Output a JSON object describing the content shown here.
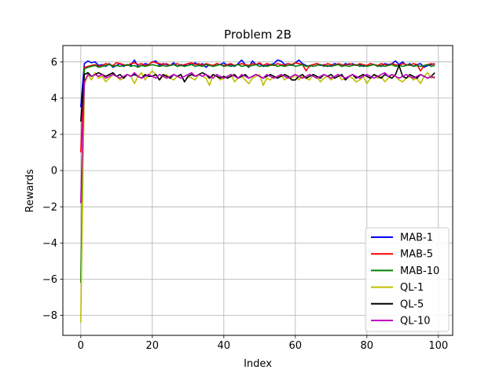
{
  "chart_data": {
    "type": "line",
    "title": "Problem 2B",
    "xlabel": "Index",
    "ylabel": "Rewards",
    "xlim": [
      -5,
      104
    ],
    "ylim": [
      -9.1,
      6.9
    ],
    "xticks": [
      0,
      20,
      40,
      60,
      80,
      100
    ],
    "yticks": [
      -8,
      -6,
      -4,
      -2,
      0,
      2,
      4,
      6
    ],
    "grid": true,
    "legend_position": "lower right",
    "series": [
      {
        "name": "MAB-1",
        "color": "#0000ff",
        "values": [
          3.5,
          5.9,
          6.05,
          5.95,
          6.0,
          5.8,
          5.85,
          5.75,
          5.9,
          5.7,
          5.8,
          5.9,
          5.75,
          5.85,
          5.8,
          6.1,
          5.75,
          5.8,
          5.9,
          5.85,
          6.0,
          6.05,
          5.8,
          5.9,
          5.85,
          5.8,
          5.95,
          5.75,
          5.85,
          5.8,
          5.9,
          5.85,
          5.95,
          5.8,
          5.9,
          5.7,
          5.85,
          5.75,
          5.9,
          5.85,
          5.95,
          5.8,
          5.85,
          5.75,
          5.9,
          6.1,
          5.85,
          5.7,
          6.05,
          5.85,
          5.9,
          5.75,
          5.8,
          5.85,
          5.9,
          6.1,
          6.05,
          5.85,
          5.9,
          5.8,
          5.95,
          6.1,
          5.9,
          5.8,
          5.75,
          5.85,
          5.9,
          5.8,
          5.85,
          5.75,
          5.8,
          5.9,
          5.85,
          5.75,
          5.9,
          5.85,
          5.9,
          5.8,
          5.85,
          5.75,
          5.8,
          5.9,
          5.85,
          5.8,
          5.75,
          5.9,
          5.85,
          5.9,
          6.05,
          5.85,
          6.0,
          5.8,
          5.9,
          5.75,
          5.85,
          5.9,
          5.7,
          5.8,
          5.85,
          5.9
        ]
      },
      {
        "name": "MAB-5",
        "color": "#ff0000",
        "values": [
          1.0,
          5.7,
          5.75,
          5.8,
          5.85,
          5.75,
          5.8,
          5.9,
          5.85,
          5.8,
          5.95,
          5.9,
          5.85,
          5.8,
          5.9,
          5.95,
          5.85,
          5.9,
          5.8,
          5.85,
          6.0,
          5.95,
          5.9,
          5.85,
          5.9,
          5.8,
          5.85,
          5.9,
          5.8,
          5.85,
          5.9,
          5.95,
          5.85,
          5.9,
          5.8,
          5.9,
          5.85,
          5.8,
          5.9,
          5.85,
          5.8,
          5.85,
          5.9,
          5.8,
          5.85,
          5.9,
          5.85,
          5.8,
          5.9,
          5.85,
          5.95,
          5.8,
          5.9,
          5.85,
          5.8,
          5.9,
          5.85,
          5.8,
          5.9,
          5.85,
          5.95,
          5.9,
          5.85,
          5.5,
          5.8,
          5.85,
          5.9,
          5.85,
          5.8,
          5.9,
          5.85,
          5.8,
          5.9,
          5.85,
          5.8,
          5.9,
          5.85,
          5.8,
          5.9,
          5.85,
          5.8,
          5.9,
          5.85,
          5.8,
          5.9,
          5.85,
          5.8,
          5.9,
          5.85,
          5.8,
          5.9,
          5.85,
          5.8,
          5.9,
          5.85,
          5.5,
          5.8,
          5.85,
          5.9,
          5.85
        ]
      },
      {
        "name": "MAB-10",
        "color": "#008000",
        "values": [
          -6.2,
          5.6,
          5.7,
          5.75,
          5.8,
          5.7,
          5.75,
          5.8,
          5.85,
          5.75,
          5.8,
          5.75,
          5.8,
          5.85,
          5.75,
          5.8,
          5.7,
          5.8,
          5.75,
          5.8,
          5.85,
          5.8,
          5.75,
          5.8,
          5.75,
          5.8,
          5.85,
          5.75,
          5.8,
          5.75,
          5.8,
          5.85,
          5.75,
          5.8,
          5.75,
          5.85,
          5.8,
          5.75,
          5.8,
          5.85,
          5.75,
          5.8,
          5.75,
          5.8,
          5.85,
          5.75,
          5.8,
          5.75,
          5.8,
          5.85,
          5.75,
          5.8,
          5.75,
          5.8,
          5.85,
          5.75,
          5.8,
          5.75,
          5.8,
          5.85,
          5.75,
          5.8,
          5.85,
          5.75,
          5.8,
          5.75,
          5.8,
          5.85,
          5.75,
          5.8,
          5.75,
          5.8,
          5.85,
          5.75,
          5.8,
          5.75,
          5.8,
          5.85,
          5.75,
          5.8,
          5.75,
          5.8,
          5.85,
          5.75,
          5.8,
          5.75,
          5.8,
          5.85,
          5.75,
          5.8,
          5.75,
          5.8,
          5.85,
          5.75,
          5.8,
          5.75,
          5.8,
          5.85,
          5.75,
          5.8
        ]
      },
      {
        "name": "QL-1",
        "color": "#bfbf00",
        "values": [
          -8.4,
          4.7,
          5.3,
          5.0,
          5.4,
          5.1,
          5.2,
          4.9,
          5.1,
          5.3,
          5.2,
          5.0,
          5.1,
          5.3,
          5.2,
          4.8,
          5.2,
          5.4,
          5.0,
          5.3,
          5.5,
          5.3,
          5.0,
          5.2,
          5.3,
          5.1,
          5.0,
          5.2,
          5.3,
          4.9,
          5.2,
          5.1,
          5.0,
          5.3,
          5.2,
          5.1,
          4.7,
          5.3,
          5.2,
          5.0,
          5.1,
          5.2,
          5.3,
          4.9,
          5.1,
          5.2,
          5.0,
          4.8,
          5.1,
          5.2,
          5.3,
          4.7,
          5.1,
          5.0,
          5.2,
          5.1,
          5.3,
          5.0,
          5.2,
          5.1,
          5.3,
          5.0,
          5.2,
          5.1,
          5.0,
          5.3,
          5.2,
          4.9,
          5.1,
          5.2,
          5.0,
          5.2,
          5.3,
          5.0,
          5.1,
          5.2,
          5.1,
          4.9,
          5.0,
          5.2,
          4.8,
          5.1,
          5.3,
          5.1,
          5.2,
          4.9,
          5.1,
          5.3,
          5.2,
          5.0,
          4.9,
          5.1,
          5.2,
          5.0,
          5.1,
          4.8,
          5.2,
          5.4,
          5.1,
          5.2
        ]
      },
      {
        "name": "QL-5",
        "color": "#000000",
        "values": [
          2.7,
          5.3,
          5.4,
          5.2,
          5.3,
          5.4,
          5.3,
          5.2,
          5.3,
          5.4,
          5.2,
          5.3,
          5.1,
          5.3,
          5.2,
          5.3,
          5.2,
          5.1,
          5.3,
          5.2,
          5.2,
          5.3,
          5.0,
          5.3,
          5.2,
          5.1,
          5.3,
          5.2,
          5.3,
          4.9,
          5.2,
          5.3,
          5.2,
          5.3,
          5.4,
          5.3,
          5.1,
          5.3,
          5.2,
          5.1,
          5.2,
          5.1,
          5.2,
          5.3,
          5.1,
          5.2,
          5.3,
          5.1,
          5.2,
          5.3,
          5.2,
          5.1,
          5.2,
          5.3,
          5.2,
          5.1,
          5.2,
          5.3,
          5.2,
          5.0,
          5.0,
          5.2,
          5.3,
          5.1,
          5.2,
          5.3,
          5.2,
          5.1,
          5.3,
          5.2,
          5.3,
          5.1,
          5.2,
          5.3,
          5.0,
          5.2,
          5.3,
          5.1,
          5.2,
          5.3,
          5.2,
          5.1,
          5.3,
          5.2,
          5.1,
          5.3,
          5.2,
          5.1,
          5.3,
          5.8,
          5.2,
          5.1,
          5.3,
          5.2,
          5.1,
          5.3,
          5.2,
          5.1,
          5.2,
          5.4
        ]
      },
      {
        "name": "QL-10",
        "color": "#bf00bf",
        "values": [
          -1.8,
          4.9,
          5.3,
          5.2,
          5.3,
          5.2,
          5.3,
          5.1,
          5.2,
          5.3,
          5.2,
          5.1,
          5.2,
          5.3,
          5.2,
          5.4,
          5.2,
          5.1,
          5.2,
          5.3,
          5.2,
          5.1,
          5.3,
          5.2,
          5.1,
          5.2,
          5.3,
          5.2,
          5.1,
          5.2,
          5.3,
          5.4,
          5.2,
          5.3,
          5.2,
          5.3,
          5.2,
          5.1,
          5.3,
          5.2,
          5.1,
          5.2,
          5.3,
          5.2,
          5.1,
          5.3,
          5.2,
          5.1,
          5.2,
          5.3,
          5.2,
          5.1,
          5.3,
          5.2,
          5.1,
          5.2,
          5.3,
          5.2,
          5.1,
          5.2,
          5.3,
          5.2,
          5.1,
          5.2,
          5.3,
          5.2,
          5.1,
          5.2,
          5.3,
          5.2,
          5.1,
          5.2,
          5.3,
          5.2,
          5.1,
          5.2,
          5.3,
          5.2,
          5.1,
          5.2,
          5.3,
          5.2,
          5.1,
          5.2,
          5.3,
          5.4,
          5.2,
          5.3,
          5.2,
          5.1,
          5.2,
          5.3,
          5.2,
          5.1,
          5.2,
          5.3,
          5.2,
          5.1,
          5.2,
          5.1
        ]
      }
    ]
  }
}
